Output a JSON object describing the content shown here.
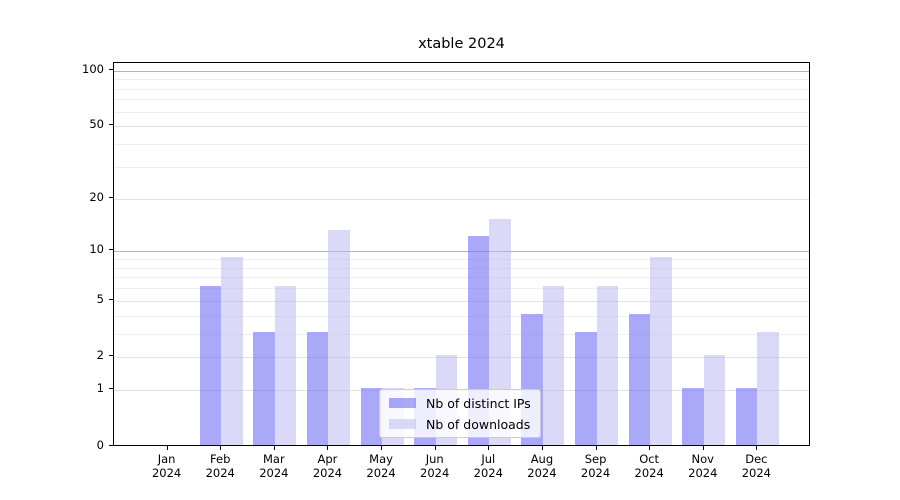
{
  "chart_data": {
    "type": "bar",
    "title": "xtable 2024",
    "categories": [
      "Jan",
      "Feb",
      "Mar",
      "Apr",
      "May",
      "Jun",
      "Jul",
      "Aug",
      "Sep",
      "Oct",
      "Nov",
      "Dec"
    ],
    "year": "2024",
    "series": [
      {
        "name": "Nb of distinct IPs",
        "values": [
          0,
          6,
          3,
          3,
          1,
          1,
          12,
          4,
          3,
          4,
          1,
          1
        ],
        "color": "#a9a9f8",
        "fill": "rgba(112,112,243,0.6)"
      },
      {
        "name": "Nb of downloads",
        "values": [
          0,
          9,
          6,
          13,
          1,
          2,
          15,
          6,
          6,
          9,
          2,
          3
        ],
        "color": "#dadaf8",
        "fill": "rgba(181,181,241,0.5)"
      }
    ],
    "xlabel": "",
    "ylabel": "",
    "yscale": "log1p",
    "ylim": [
      0,
      110
    ],
    "yticks": [
      0,
      1,
      2,
      5,
      10,
      20,
      50,
      100
    ],
    "minor_yticks": [
      3,
      4,
      6,
      7,
      8,
      9,
      30,
      40,
      60,
      70,
      80,
      90
    ],
    "grid": true,
    "legend_position": "lower center",
    "colors": {
      "grid_strong": "#b4b4b4",
      "grid_medium": "#e2e2e2",
      "grid_minor": "#efefef",
      "spine": "#000000",
      "legend_border": "#cccccc"
    }
  }
}
